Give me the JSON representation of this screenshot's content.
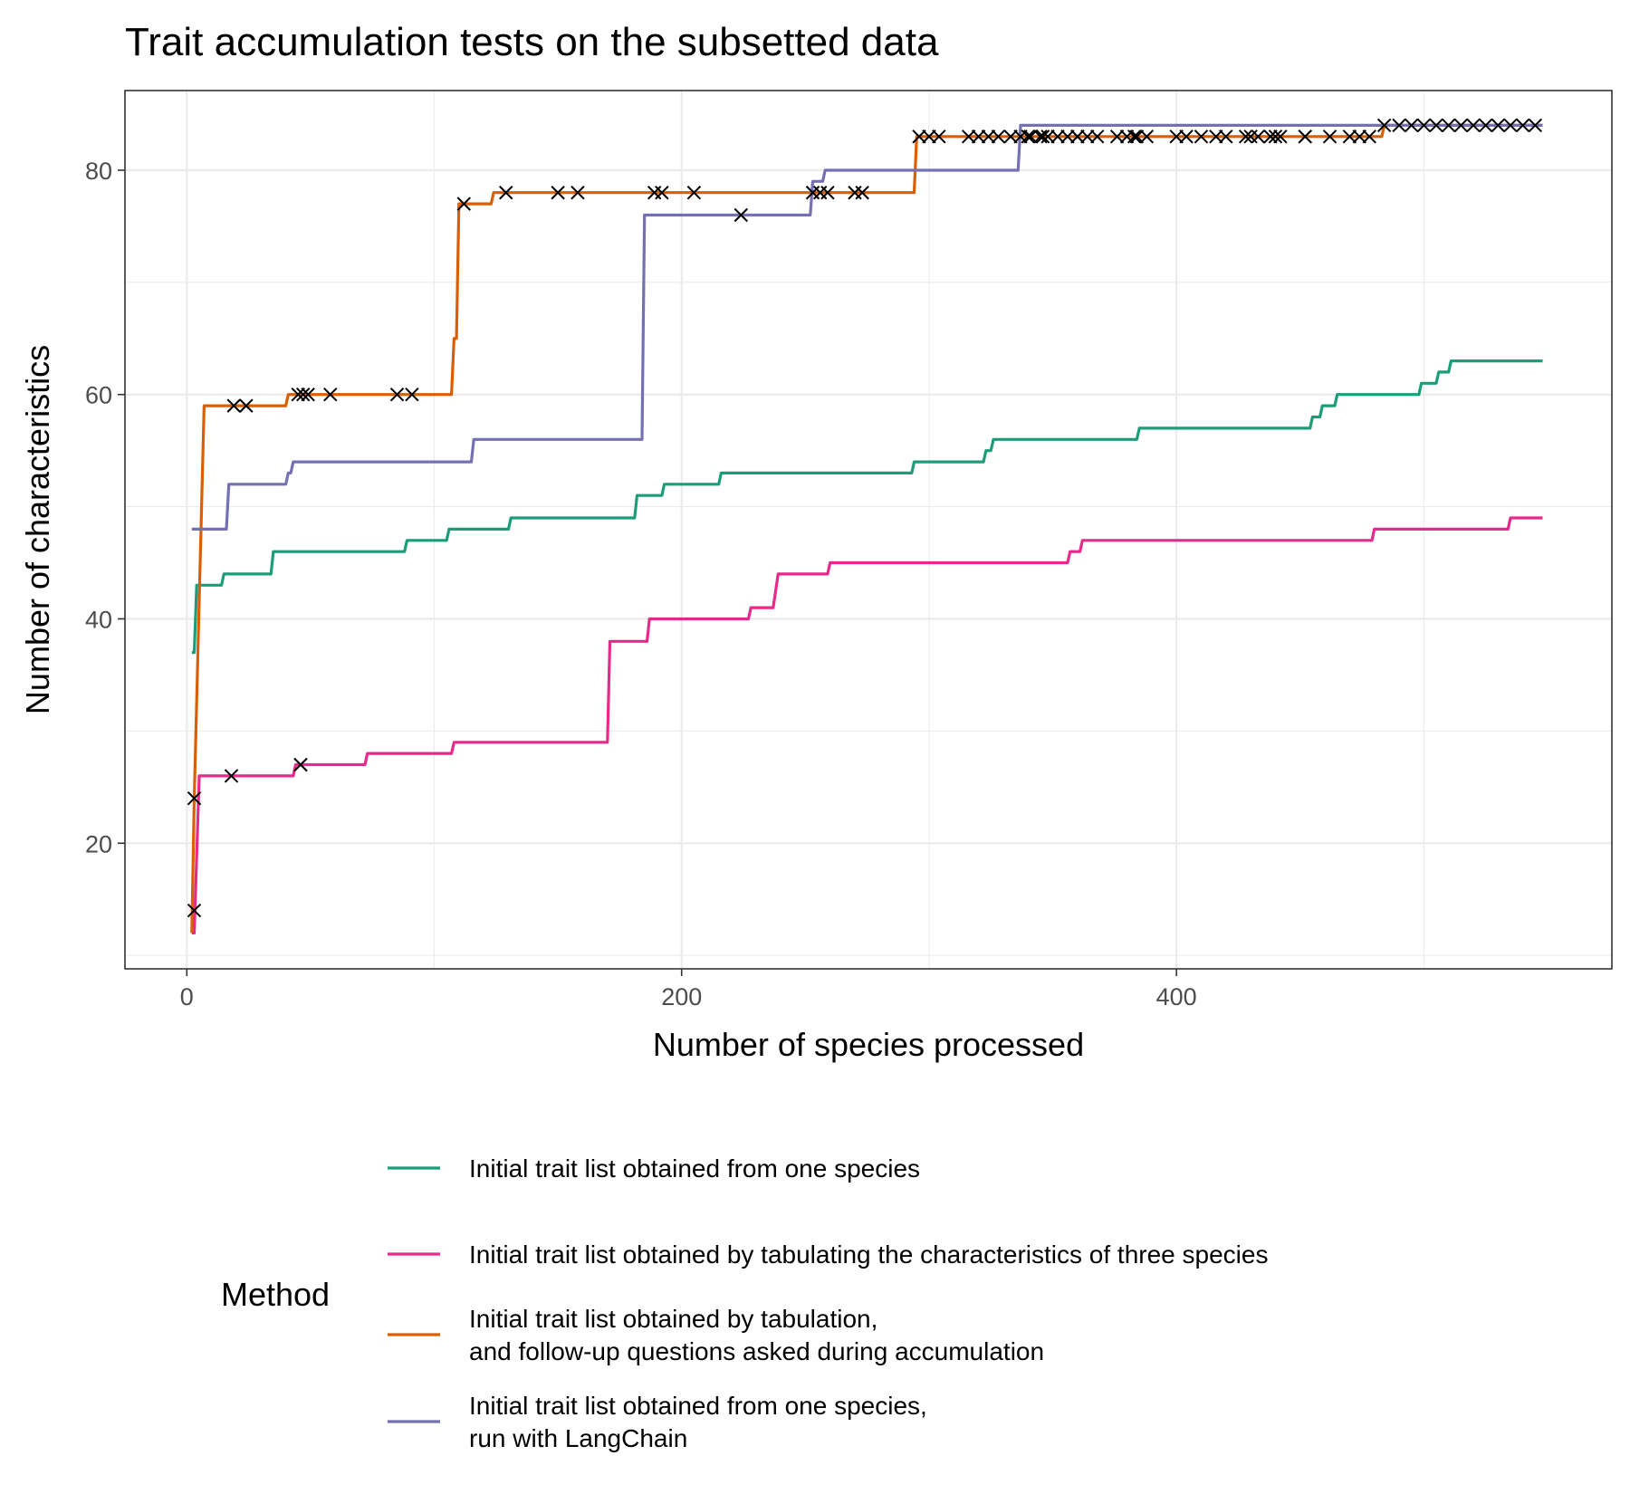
{
  "chart_data": {
    "type": "line",
    "title": "Trait accumulation tests on the subsetted data",
    "xlabel": "Number of species processed",
    "ylabel": "Number of characteristics",
    "xlim": [
      -25,
      576
    ],
    "ylim": [
      8.8,
      87.1
    ],
    "x_ticks": [
      0,
      200,
      400
    ],
    "x_tick_labels": [
      "0",
      "200",
      "400"
    ],
    "y_ticks": [
      20,
      40,
      60,
      80
    ],
    "y_tick_labels": [
      "20",
      "40",
      "60",
      "80"
    ],
    "x_minor_ticks": [
      100,
      300,
      500
    ],
    "y_minor_ticks": [
      10,
      30,
      50,
      70
    ],
    "grid": true,
    "legend_title": "Method",
    "legend_position": "bottom",
    "marker": "x",
    "marker_color": "#000000",
    "series": [
      {
        "name": "Initial trait list obtained from one species",
        "color": "#1b9e77",
        "points": [
          [
            2,
            37
          ],
          [
            3,
            37
          ],
          [
            4,
            43
          ],
          [
            14,
            43
          ],
          [
            15,
            44
          ],
          [
            34,
            44
          ],
          [
            35,
            46
          ],
          [
            88,
            46
          ],
          [
            89,
            47
          ],
          [
            105,
            47
          ],
          [
            106,
            48
          ],
          [
            130,
            48
          ],
          [
            131,
            49
          ],
          [
            181,
            49
          ],
          [
            182,
            51
          ],
          [
            192,
            51
          ],
          [
            193,
            52
          ],
          [
            215,
            52
          ],
          [
            216,
            53
          ],
          [
            293,
            53
          ],
          [
            294,
            54
          ],
          [
            322,
            54
          ],
          [
            323,
            55
          ],
          [
            325,
            55
          ],
          [
            326,
            56
          ],
          [
            384,
            56
          ],
          [
            385,
            57
          ],
          [
            454,
            57
          ],
          [
            455,
            58
          ],
          [
            458,
            58
          ],
          [
            459,
            59
          ],
          [
            464,
            59
          ],
          [
            465,
            60
          ],
          [
            498,
            60
          ],
          [
            499,
            61
          ],
          [
            505,
            61
          ],
          [
            506,
            62
          ],
          [
            510,
            62
          ],
          [
            511,
            63
          ],
          [
            548,
            63
          ]
        ],
        "markers": []
      },
      {
        "name": "Initial trait list obtained by tabulating the characteristics of three species",
        "color": "#e7298a",
        "points": [
          [
            2,
            12
          ],
          [
            3,
            12
          ],
          [
            5,
            26
          ],
          [
            43,
            26
          ],
          [
            44,
            27
          ],
          [
            72,
            27
          ],
          [
            73,
            28
          ],
          [
            107,
            28
          ],
          [
            108,
            29
          ],
          [
            170,
            29
          ],
          [
            171,
            38
          ],
          [
            186,
            38
          ],
          [
            187,
            40
          ],
          [
            227,
            40
          ],
          [
            228,
            41
          ],
          [
            237,
            41
          ],
          [
            239,
            44
          ],
          [
            259,
            44
          ],
          [
            260,
            45
          ],
          [
            356,
            45
          ],
          [
            357,
            46
          ],
          [
            361,
            46
          ],
          [
            362,
            47
          ],
          [
            479,
            47
          ],
          [
            480,
            48
          ],
          [
            534,
            48
          ],
          [
            535,
            49
          ],
          [
            548,
            49
          ]
        ],
        "markers": [
          [
            3,
            14
          ],
          [
            18,
            26
          ],
          [
            46,
            27
          ],
          [
            46,
            27
          ]
        ]
      },
      {
        "name": "Initial trait list obtained by tabulation,\nand follow-up questions asked during accumulation",
        "color": "#d95f02",
        "points": [
          [
            2,
            12
          ],
          [
            3,
            24
          ],
          [
            7,
            59
          ],
          [
            40,
            59
          ],
          [
            41,
            60
          ],
          [
            107,
            60
          ],
          [
            108,
            65
          ],
          [
            109,
            65
          ],
          [
            110,
            77
          ],
          [
            123,
            77
          ],
          [
            124,
            78
          ],
          [
            294,
            78
          ],
          [
            295,
            83
          ],
          [
            483,
            83
          ],
          [
            484,
            84
          ],
          [
            548,
            84
          ]
        ],
        "markers": [
          [
            3,
            24
          ],
          [
            19,
            59
          ],
          [
            24,
            59
          ],
          [
            45,
            60
          ],
          [
            47,
            60
          ],
          [
            49,
            60
          ],
          [
            58,
            60
          ],
          [
            85,
            60
          ],
          [
            91,
            60
          ],
          [
            112,
            77
          ],
          [
            129,
            78
          ],
          [
            150,
            78
          ],
          [
            158,
            78
          ],
          [
            189,
            78
          ],
          [
            192,
            78
          ],
          [
            205,
            78
          ],
          [
            253,
            78
          ],
          [
            256,
            78
          ],
          [
            259,
            78
          ],
          [
            270,
            78
          ],
          [
            273,
            78
          ],
          [
            296,
            83
          ],
          [
            300,
            83
          ],
          [
            304,
            83
          ],
          [
            316,
            83
          ],
          [
            320,
            83
          ],
          [
            324,
            83
          ],
          [
            328,
            83
          ],
          [
            333,
            83
          ],
          [
            337,
            83
          ],
          [
            341,
            83
          ],
          [
            345,
            83
          ],
          [
            348,
            83
          ],
          [
            352,
            83
          ],
          [
            356,
            83
          ],
          [
            360,
            83
          ],
          [
            364,
            83
          ],
          [
            376,
            83
          ],
          [
            380,
            83
          ],
          [
            384,
            83
          ],
          [
            388,
            83
          ],
          [
            400,
            83
          ],
          [
            404,
            83
          ],
          [
            410,
            83
          ],
          [
            416,
            83
          ],
          [
            428,
            83
          ],
          [
            433,
            83
          ],
          [
            438,
            83
          ],
          [
            442,
            83
          ],
          [
            452,
            83
          ],
          [
            462,
            83
          ],
          [
            474,
            83
          ],
          [
            484,
            84
          ],
          [
            490,
            84
          ],
          [
            495,
            84
          ],
          [
            500,
            84
          ],
          [
            505,
            84
          ],
          [
            510,
            84
          ],
          [
            515,
            84
          ],
          [
            520,
            84
          ],
          [
            525,
            84
          ],
          [
            530,
            84
          ],
          [
            535,
            84
          ],
          [
            540,
            84
          ],
          [
            545,
            84
          ]
        ]
      },
      {
        "name": "Initial trait list obtained from one species,\nrun with LangChain",
        "color": "#7570b3",
        "points": [
          [
            2,
            48
          ],
          [
            16,
            48
          ],
          [
            17,
            52
          ],
          [
            40,
            52
          ],
          [
            41,
            53
          ],
          [
            42,
            53
          ],
          [
            43,
            54
          ],
          [
            115,
            54
          ],
          [
            116,
            56
          ],
          [
            184,
            56
          ],
          [
            185,
            76
          ],
          [
            252,
            76
          ],
          [
            253,
            79
          ],
          [
            257,
            79
          ],
          [
            258,
            80
          ],
          [
            336,
            80
          ],
          [
            337,
            84
          ],
          [
            482,
            84
          ],
          [
            483,
            84
          ],
          [
            548,
            84
          ]
        ],
        "markers": [
          [
            224,
            76
          ],
          [
            340,
            83
          ],
          [
            346,
            83
          ],
          [
            360,
            83
          ],
          [
            368,
            83
          ],
          [
            383,
            83
          ],
          [
            420,
            83
          ],
          [
            430,
            83
          ],
          [
            440,
            83
          ],
          [
            452,
            83
          ],
          [
            470,
            83
          ],
          [
            478,
            83
          ]
        ]
      }
    ]
  }
}
